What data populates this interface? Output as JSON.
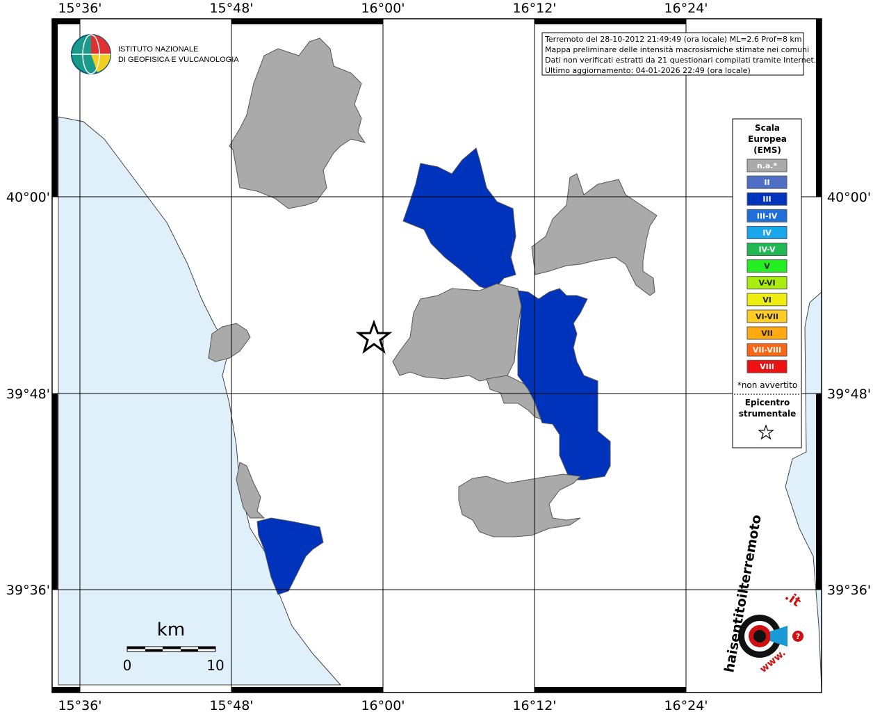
{
  "map": {
    "lon_labels": [
      "15°36'",
      "15°48'",
      "16°00'",
      "16°12'",
      "16°24'"
    ],
    "lat_labels": [
      "40°00'",
      "39°48'",
      "39°36'"
    ]
  },
  "logo": {
    "line1": "ISTITUTO NAZIONALE",
    "line2": "DI GEOFISICA E VULCANOLOGIA"
  },
  "info": {
    "lines": [
      "Terremoto del 28-10-2012 21:49:49 (ora locale) ML=2.6 Prof=8 km",
      "Mappa preliminare delle intensità macrosismiche stimate nei comuni",
      "Dati non verificati estratti da 21 questionari compilati tramite Internet.",
      "Ultimo aggiornamento: 04-01-2026 22:49 (ora locale)"
    ]
  },
  "legend": {
    "title": [
      "Scala",
      "Europea",
      "(EMS)"
    ],
    "items": [
      {
        "label": "n.a.*",
        "color": "#aaaaaa"
      },
      {
        "label": "II",
        "color": "#4f6fc4"
      },
      {
        "label": "III",
        "color": "#0033bb"
      },
      {
        "label": "III-IV",
        "color": "#1f6fd8"
      },
      {
        "label": "IV",
        "color": "#1aa6ea"
      },
      {
        "label": "IV-V",
        "color": "#22b855"
      },
      {
        "label": "V",
        "color": "#22ee22"
      },
      {
        "label": "V-VI",
        "color": "#aaee11"
      },
      {
        "label": "VI",
        "color": "#eeee11"
      },
      {
        "label": "VI-VII",
        "color": "#ffcc22"
      },
      {
        "label": "VII",
        "color": "#ffaa11"
      },
      {
        "label": "VII-VIII",
        "color": "#ff6611"
      },
      {
        "label": "VIII",
        "color": "#ee1111"
      }
    ],
    "note": "*non avvertito",
    "epicenter": [
      "Epicentro",
      "strumentale"
    ]
  },
  "scale": {
    "unit": "km",
    "labels": [
      "0",
      "10"
    ]
  },
  "badge": {
    "www": "www.",
    "text": "haisentitoilterremoto",
    "tld": ".it"
  }
}
